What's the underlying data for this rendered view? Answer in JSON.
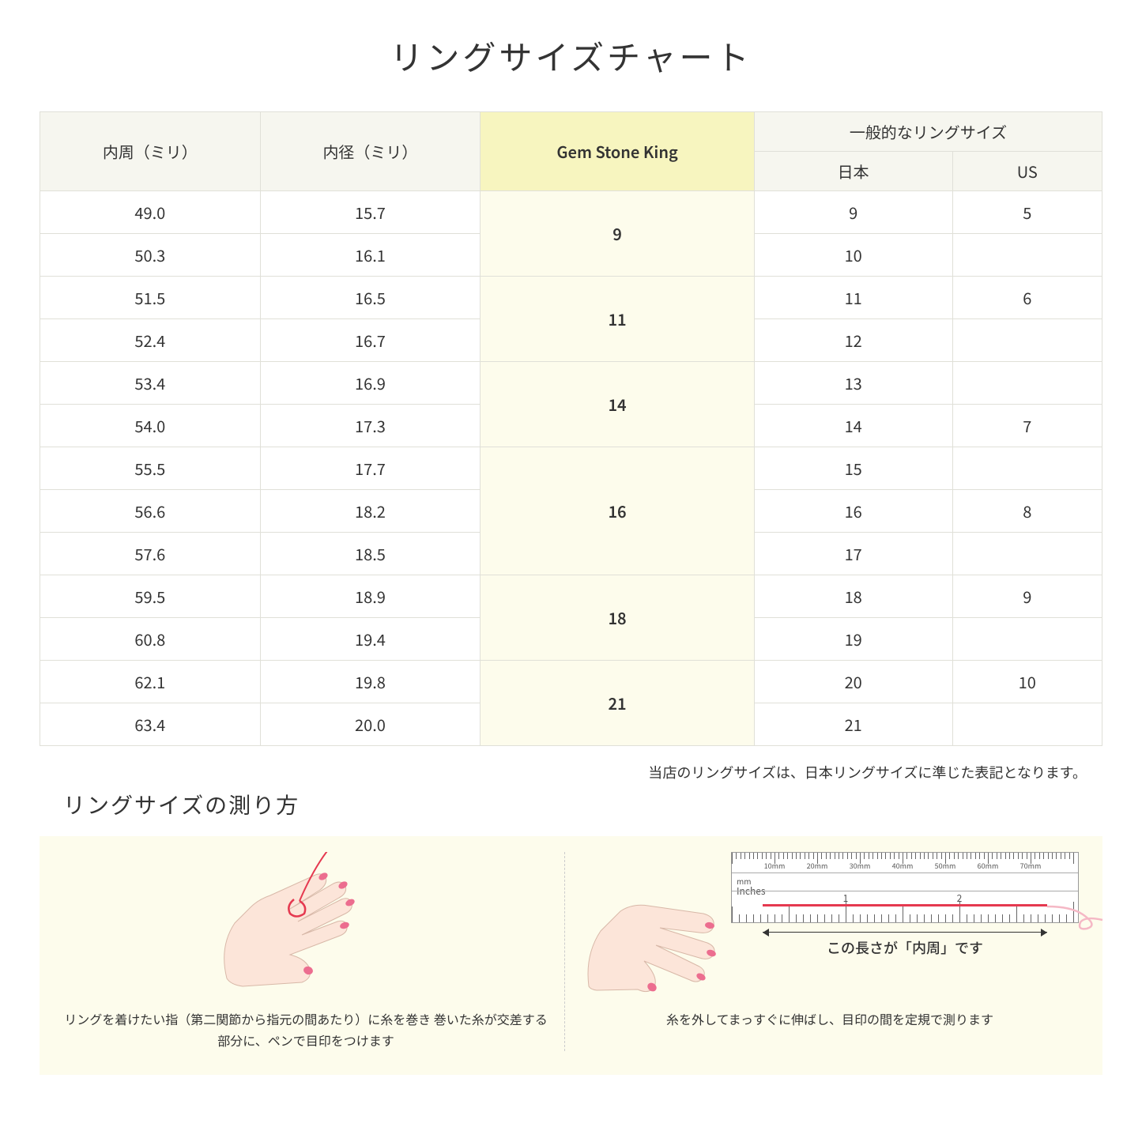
{
  "title": "リングサイズチャート",
  "table": {
    "headers": {
      "circumference": "内周（ミリ）",
      "diameter": "内径（ミリ）",
      "brand": "Gem Stone King",
      "general": "一般的なリングサイズ",
      "jp": "日本",
      "us": "US"
    },
    "groups": [
      {
        "brand": "9",
        "rows": [
          {
            "c": "49.0",
            "d": "15.7",
            "jp": "9",
            "us": "5"
          },
          {
            "c": "50.3",
            "d": "16.1",
            "jp": "10",
            "us": ""
          }
        ]
      },
      {
        "brand": "11",
        "rows": [
          {
            "c": "51.5",
            "d": "16.5",
            "jp": "11",
            "us": "6"
          },
          {
            "c": "52.4",
            "d": "16.7",
            "jp": "12",
            "us": ""
          }
        ]
      },
      {
        "brand": "14",
        "rows": [
          {
            "c": "53.4",
            "d": "16.9",
            "jp": "13",
            "us": ""
          },
          {
            "c": "54.0",
            "d": "17.3",
            "jp": "14",
            "us": "7"
          }
        ]
      },
      {
        "brand": "16",
        "rows": [
          {
            "c": "55.5",
            "d": "17.7",
            "jp": "15",
            "us": ""
          },
          {
            "c": "56.6",
            "d": "18.2",
            "jp": "16",
            "us": "8"
          },
          {
            "c": "57.6",
            "d": "18.5",
            "jp": "17",
            "us": ""
          }
        ]
      },
      {
        "brand": "18",
        "rows": [
          {
            "c": "59.5",
            "d": "18.9",
            "jp": "18",
            "us": "9"
          },
          {
            "c": "60.8",
            "d": "19.4",
            "jp": "19",
            "us": ""
          }
        ]
      },
      {
        "brand": "21",
        "rows": [
          {
            "c": "62.1",
            "d": "19.8",
            "jp": "20",
            "us": "10"
          },
          {
            "c": "63.4",
            "d": "20.0",
            "jp": "21",
            "us": ""
          }
        ]
      }
    ]
  },
  "note": "当店のリングサイズは、日本リングサイズに準じた表記となります。",
  "measure": {
    "title": "リングサイズの測り方",
    "step1": "リングを着けたい指（第二関節から指元の間あたり）に糸を巻き\n巻いた糸が交差する部分に、ペンで目印をつけます",
    "step2": "糸を外してまっすぐに伸ばし、目印の間を定規で測ります",
    "arrow_label": "この長さが「内周」です",
    "ruler": {
      "mm_label": "mm",
      "in_label": "Inches",
      "mm_ticks": [
        "10mm",
        "20mm",
        "30mm",
        "40mm",
        "50mm",
        "60mm",
        "70mm"
      ],
      "in_ticks": [
        "1",
        "2"
      ]
    }
  },
  "colors": {
    "header_bg": "#f6f6ef",
    "highlight_header": "#f7f5bf",
    "highlight_cell": "#fdfcec",
    "border": "#e0e0d8",
    "thread": "#e53950",
    "skin": "#fce5d9",
    "nail": "#ec6d8f"
  }
}
